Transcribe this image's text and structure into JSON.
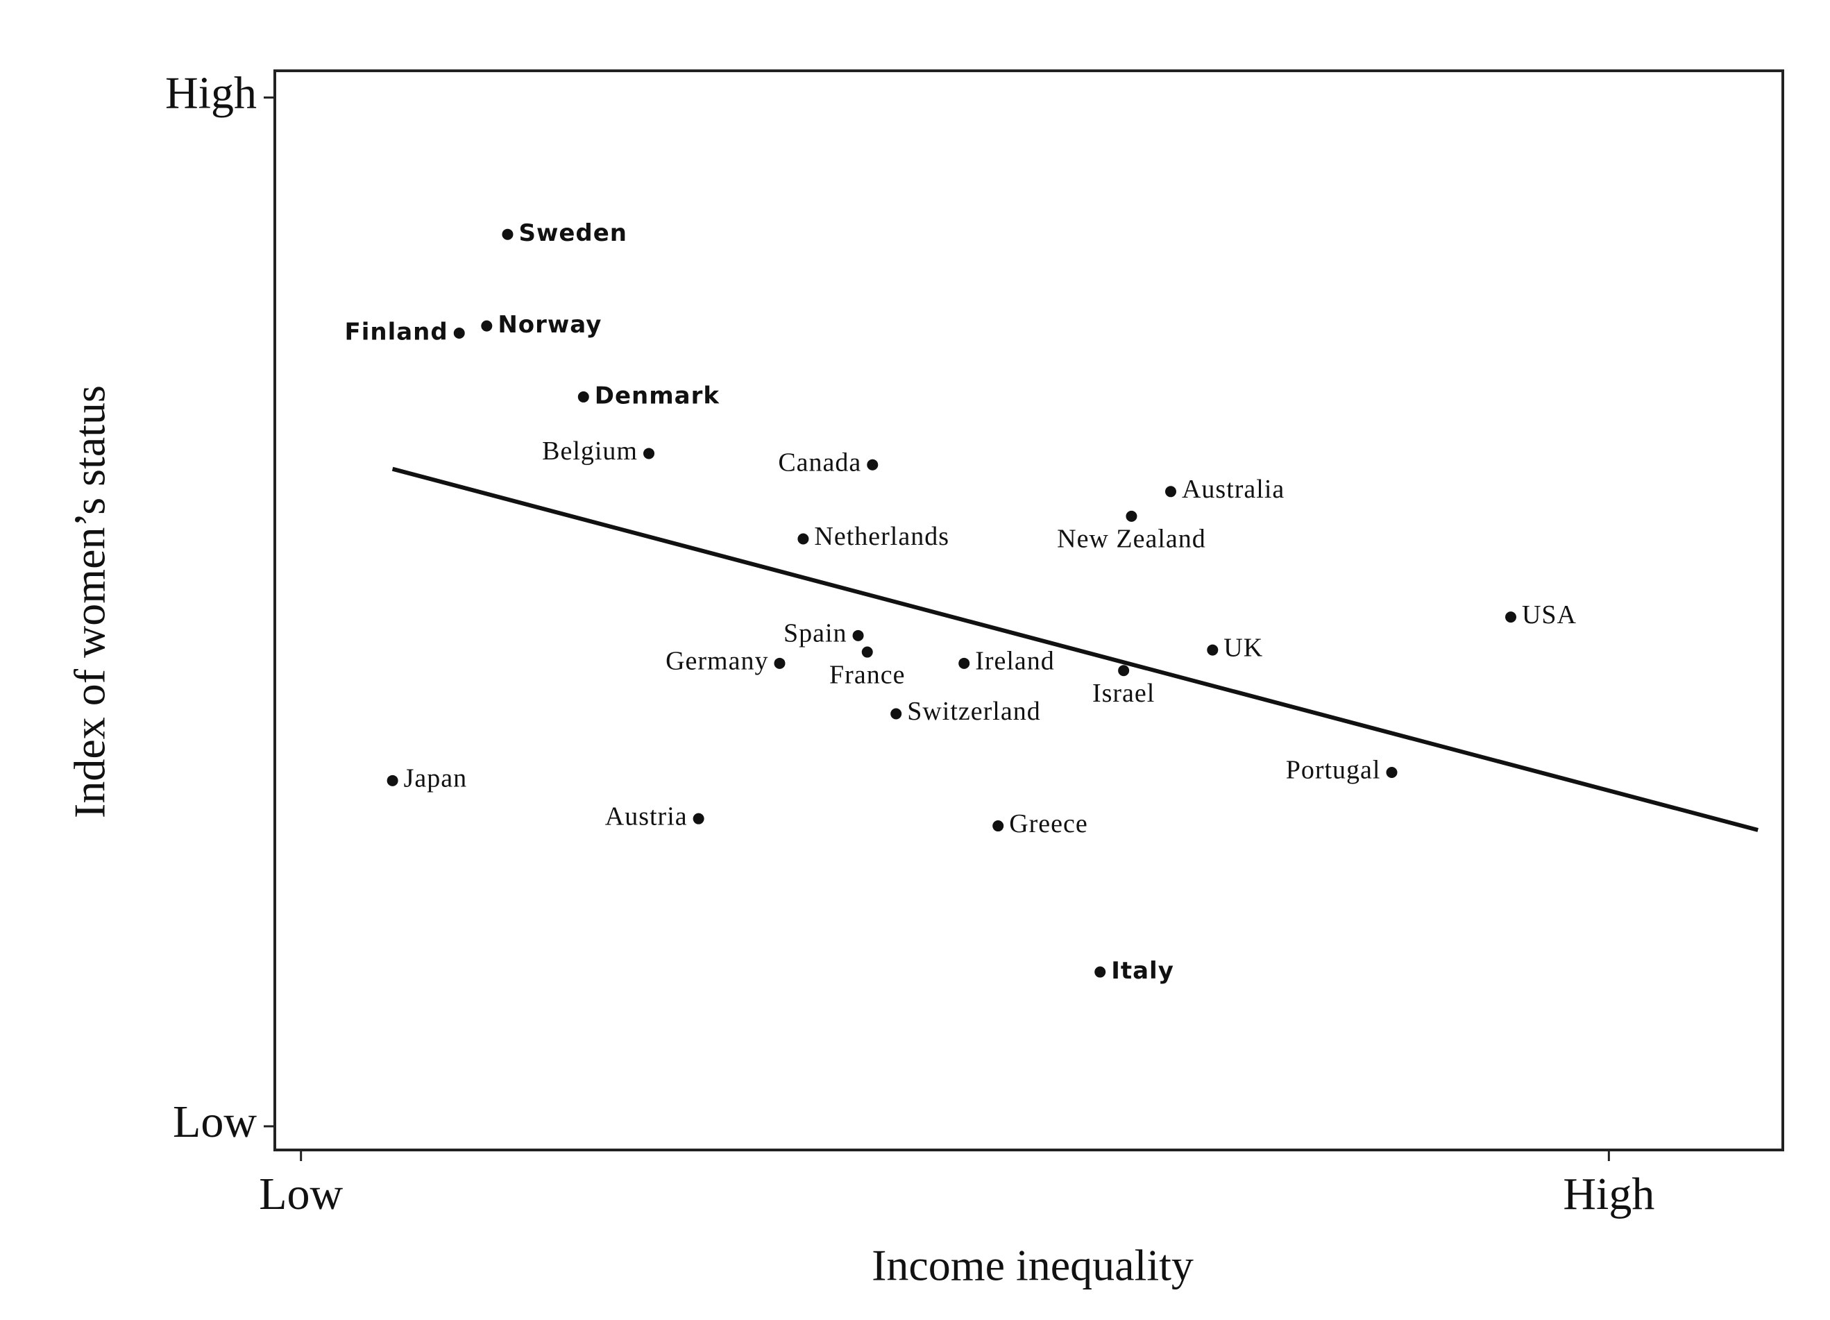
{
  "chart_data": {
    "type": "scatter",
    "x_label": "Income inequality",
    "y_label": "Index of women’s status",
    "labels": [
      "Sweden",
      "Finland",
      "Norway",
      "Denmark",
      "Belgium",
      "Canada",
      "Netherlands",
      "Australia",
      "New Zealand",
      "USA",
      "Spain",
      "France",
      "Germany",
      "Ireland",
      "Israel",
      "UK",
      "Switzerland",
      "Japan",
      "Austria",
      "Greece",
      "Portugal",
      "Italy"
    ],
    "x": [
      15.8,
      12.1,
      14.2,
      21.6,
      26.6,
      43.7,
      38.4,
      66.5,
      63.5,
      92.5,
      42.6,
      43.3,
      36.6,
      50.7,
      62.9,
      69.7,
      45.5,
      7.0,
      30.4,
      53.3,
      83.4,
      61.1
    ],
    "y": [
      86.7,
      77.1,
      77.8,
      70.9,
      65.4,
      64.3,
      57.1,
      61.7,
      59.3,
      49.5,
      47.7,
      46.1,
      45.0,
      45.0,
      44.3,
      46.3,
      40.1,
      33.6,
      29.9,
      29.2,
      34.4,
      15.0
    ],
    "color": "#111111",
    "fit_line": {
      "x": [
        7.0,
        111.4
      ],
      "y": [
        63.9,
        28.8
      ]
    },
    "xlim": [
      -2,
      113.3
    ],
    "ylim": [
      -2.3,
      102.6
    ],
    "xticks": [
      {
        "value": 0,
        "label": "Low"
      },
      {
        "value": 100,
        "label": "High"
      }
    ],
    "yticks": [
      {
        "value": 0,
        "label": "Low"
      },
      {
        "value": 100,
        "label": "High"
      }
    ]
  }
}
